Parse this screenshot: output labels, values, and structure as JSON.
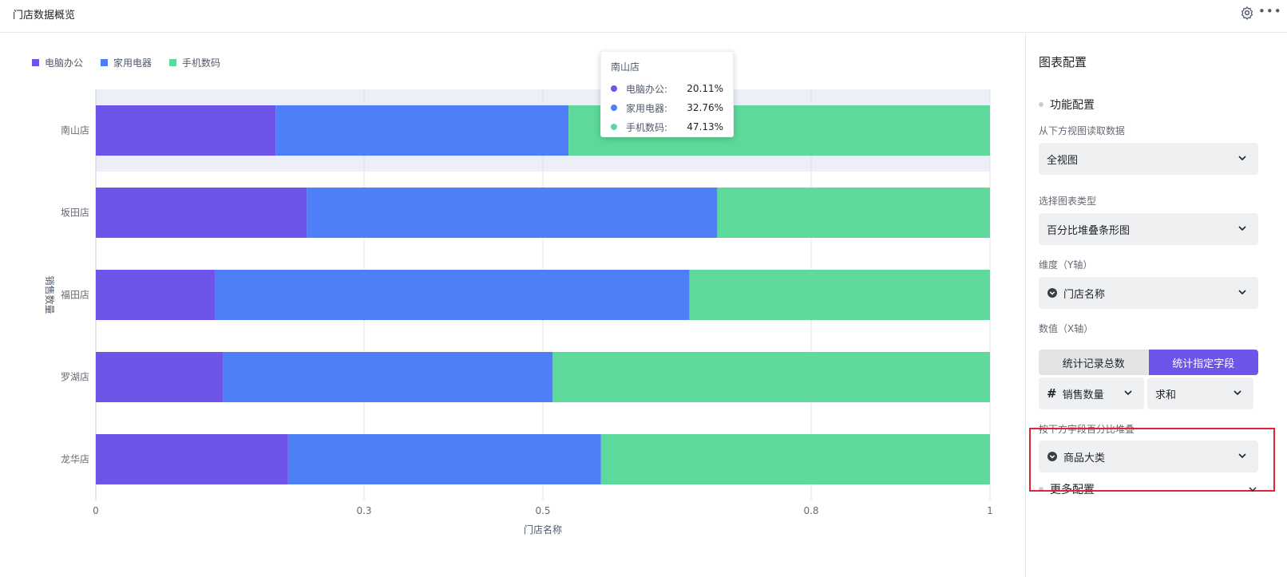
{
  "header": {
    "title": "门店数据概览"
  },
  "legend": [
    {
      "label": "电脑办公",
      "color": "#6e54e8"
    },
    {
      "label": "家用电器",
      "color": "#4f7ff7"
    },
    {
      "label": "手机数码",
      "color": "#5dd99b"
    }
  ],
  "chart_data": {
    "type": "bar",
    "orientation": "horizontal",
    "stacked": "percent",
    "categories": [
      "南山店",
      "坂田店",
      "福田店",
      "罗湖店",
      "龙华店"
    ],
    "series": [
      {
        "name": "电脑办公",
        "color": "#6e54e8",
        "values": [
          0.2011,
          0.236,
          0.133,
          0.142,
          0.215
        ]
      },
      {
        "name": "家用电器",
        "color": "#4f7ff7",
        "values": [
          0.3276,
          0.459,
          0.531,
          0.369,
          0.35
        ]
      },
      {
        "name": "手机数码",
        "color": "#5dd99b",
        "values": [
          0.4713,
          0.305,
          0.336,
          0.489,
          0.435
        ]
      }
    ],
    "xticks": [
      "0",
      "0.3",
      "0.5",
      "0.8",
      "1"
    ],
    "xtick_values": [
      0,
      0.3,
      0.5,
      0.8,
      1
    ],
    "xlim": [
      0,
      1
    ],
    "xlabel": "门店名称",
    "ylabel": "销售数量",
    "grid": "vertical",
    "highlighted_category": "南山店",
    "legend_position": "top-left"
  },
  "tooltip": {
    "title": "南山店",
    "rows": [
      {
        "name": "电脑办公:",
        "value": "20.11%",
        "color": "#6e54e8"
      },
      {
        "name": "家用电器:",
        "value": "32.76%",
        "color": "#4f7ff7"
      },
      {
        "name": "手机数码:",
        "value": "47.13%",
        "color": "#5dd99b"
      }
    ]
  },
  "sidebar": {
    "title": "图表配置",
    "function_section": "功能配置",
    "source_label": "从下方视图读取数据",
    "source_value": "全视图",
    "charttype_label": "选择图表类型",
    "charttype_value": "百分比堆叠条形图",
    "dimension_label": "维度（Y轴）",
    "dimension_value": "门店名称",
    "value_label": "数值（X轴）",
    "seg_count": "统计记录总数",
    "seg_field": "统计指定字段",
    "field_value": "销售数量",
    "agg_value": "求和",
    "stack_label": "按下方字段百分比堆叠",
    "stack_value": "商品大类",
    "more_section": "更多配置"
  },
  "colors": {
    "accent": "#6e54e8",
    "highlight": "#e02433"
  }
}
